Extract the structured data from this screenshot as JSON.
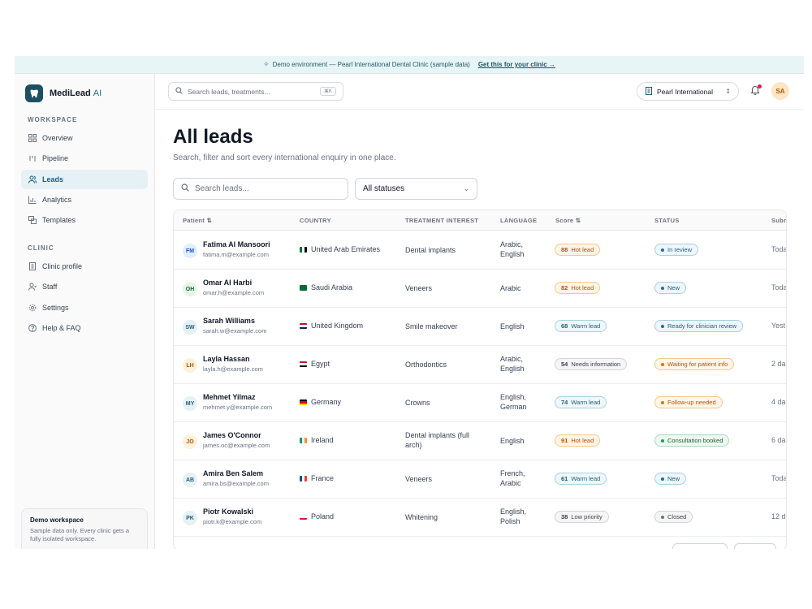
{
  "banner": {
    "text": "Demo environment — Pearl International Dental Clinic (sample data)",
    "cta": "Get this for your clinic →"
  },
  "brand": {
    "name": "MediLead",
    "suffix": "AI"
  },
  "sidebar": {
    "workspace_label": "WORKSPACE",
    "workspace_items": [
      {
        "label": "Overview",
        "icon": "grid-icon"
      },
      {
        "label": "Pipeline",
        "icon": "pipeline-icon"
      },
      {
        "label": "Leads",
        "icon": "users-icon",
        "active": true
      },
      {
        "label": "Analytics",
        "icon": "chart-icon"
      },
      {
        "label": "Templates",
        "icon": "templates-icon"
      }
    ],
    "clinic_label": "CLINIC",
    "clinic_items": [
      {
        "label": "Clinic profile",
        "icon": "building-icon"
      },
      {
        "label": "Staff",
        "icon": "staff-icon"
      },
      {
        "label": "Settings",
        "icon": "gear-icon"
      },
      {
        "label": "Help & FAQ",
        "icon": "help-icon"
      }
    ],
    "demo": {
      "title": "Demo workspace",
      "desc": "Sample data only. Every clinic gets a fully isolated workspace."
    }
  },
  "topbar": {
    "search_placeholder": "Search leads, treatments...",
    "shortcut": "⌘K",
    "clinic": "Pearl International",
    "user_initials": "SA"
  },
  "main": {
    "title": "All leads",
    "subtitle": "Search, filter and sort every international enquiry in one place.",
    "search_placeholder": "Search leads...",
    "status_filter": "All statuses"
  },
  "table": {
    "headers": [
      "Patient ⇅",
      "COUNTRY",
      "TREATMENT INTEREST",
      "LANGUAGE",
      "Score ⇅",
      "STATUS",
      "Subr"
    ],
    "rows": [
      {
        "initials": "FM",
        "name": "Fatima Al Mansoori",
        "email": "fatima.m@example.com",
        "country": "United Arab Emirates",
        "treatment": [
          "Dental implants"
        ],
        "language": [
          "Arabic,",
          "English"
        ],
        "score": "88",
        "score_label": "Hot lead",
        "score_kind": "hot",
        "status": "In review",
        "status_kind": "blue",
        "submitted": "Toda"
      },
      {
        "initials": "OH",
        "name": "Omar Al Harbi",
        "email": "omar.h@example.com",
        "country": "Saudi Arabia",
        "treatment": [
          "Veneers"
        ],
        "language": [
          "Arabic"
        ],
        "score": "82",
        "score_label": "Hot lead",
        "score_kind": "hot",
        "status": "New",
        "status_kind": "blue",
        "submitted": "Toda"
      },
      {
        "initials": "SW",
        "name": "Sarah Williams",
        "email": "sarah.w@example.com",
        "country": "United Kingdom",
        "treatment": [
          "Smile makeover"
        ],
        "language": [
          "English"
        ],
        "score": "68",
        "score_label": "Warm lead",
        "score_kind": "warm",
        "status": "Ready for clinician review",
        "status_kind": "blue",
        "submitted": "Yest"
      },
      {
        "initials": "LH",
        "name": "Layla Hassan",
        "email": "layla.h@example.com",
        "country": "Egypt",
        "treatment": [
          "Orthodontics"
        ],
        "language": [
          "Arabic,",
          "English"
        ],
        "score": "54",
        "score_label": "Needs information",
        "score_kind": "neutral",
        "status": "Waiting for patient info",
        "status_kind": "amber",
        "submitted": "2 da"
      },
      {
        "initials": "MY",
        "name": "Mehmet Yilmaz",
        "email": "mehmet.y@example.com",
        "country": "Germany",
        "treatment": [
          "Crowns"
        ],
        "language": [
          "English,",
          "German"
        ],
        "score": "74",
        "score_label": "Warm lead",
        "score_kind": "warm",
        "status": "Follow-up needed",
        "status_kind": "amber",
        "submitted": "4 da"
      },
      {
        "initials": "JO",
        "name": "James O'Connor",
        "email": "james.oc@example.com",
        "country": "Ireland",
        "treatment": [
          "Dental implants (full",
          "arch)"
        ],
        "language": [
          "English"
        ],
        "score": "91",
        "score_label": "Hot lead",
        "score_kind": "hot",
        "status": "Consultation booked",
        "status_kind": "green",
        "submitted": "6 da"
      },
      {
        "initials": "AB",
        "name": "Amira Ben Salem",
        "email": "amira.bs@example.com",
        "country": "France",
        "treatment": [
          "Veneers"
        ],
        "language": [
          "French,",
          "Arabic"
        ],
        "score": "61",
        "score_label": "Warm lead",
        "score_kind": "warm",
        "status": "New",
        "status_kind": "blue",
        "submitted": "Toda"
      },
      {
        "initials": "PK",
        "name": "Piotr Kowalski",
        "email": "piotr.k@example.com",
        "country": "Poland",
        "treatment": [
          "Whitening"
        ],
        "language": [
          "English,",
          "Polish"
        ],
        "score": "38",
        "score_label": "Low priority",
        "score_kind": "neutral",
        "status": "Closed",
        "status_kind": "gray",
        "submitted": "12 d"
      }
    ]
  },
  "colors": {
    "accent": "#1d5f78",
    "hot_bg": "#fff4e5",
    "hot_border": "#f5c98a",
    "hot_text": "#b45309",
    "warm_bg": "#eef7fa",
    "warm_border": "#a9d3e0",
    "warm_text": "#1d5f78",
    "neutral_bg": "#f5f5f5",
    "neutral_border": "#d4d4d8",
    "neutral_text": "#374151"
  }
}
